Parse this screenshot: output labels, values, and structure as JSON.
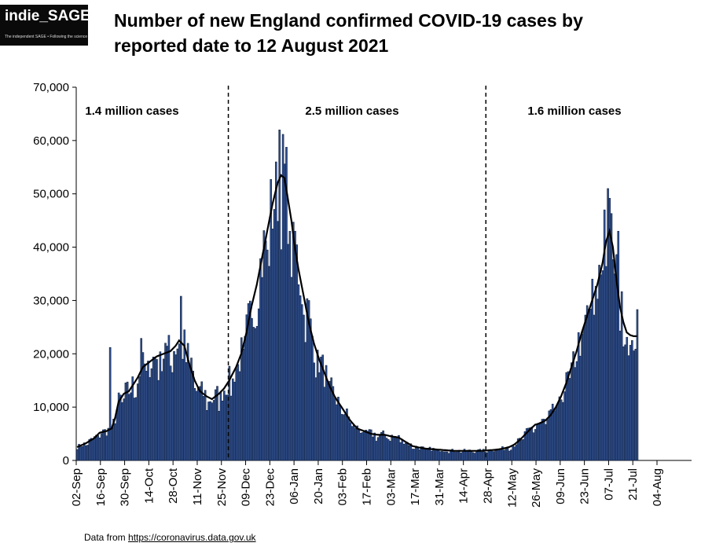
{
  "logo": {
    "name": "indie_SAGE",
    "tagline": "The independent SAGE • Following the science"
  },
  "title": "Number of new England confirmed COVID-19 cases by reported date to 12 August 2021",
  "source": {
    "prefix": "Data from ",
    "link": "https://coronavirus.data.gov.uk"
  },
  "colors": {
    "bar_fill": "#2f4f8f",
    "bar_edge": "#0d1a33",
    "trend_line": "#000000",
    "divider": "#000000"
  },
  "chart_data": {
    "type": "bar",
    "title": "Number of new England confirmed COVID-19 cases by reported date to 12 August 2021",
    "xlabel": "",
    "ylabel": "",
    "x_ticks": [
      "02-Sep",
      "16-Sep",
      "30-Sep",
      "14-Oct",
      "28-Oct",
      "11-Nov",
      "25-Nov",
      "09-Dec",
      "23-Dec",
      "06-Jan",
      "20-Jan",
      "03-Feb",
      "17-Feb",
      "03-Mar",
      "17-Mar",
      "31-Mar",
      "14-Apr",
      "28-Apr",
      "12-May",
      "26-May",
      "09-Jun",
      "23-Jun",
      "07-Jul",
      "21-Jul",
      "04-Aug"
    ],
    "y_ticks": [
      "0",
      "10,000",
      "20,000",
      "30,000",
      "40,000",
      "50,000",
      "60,000",
      "70,000"
    ],
    "ylim": [
      0,
      70000
    ],
    "x_range_days": [
      0,
      356
    ],
    "grid": false,
    "dividers_day": [
      88,
      237
    ],
    "annotations": [
      "1.4 million cases",
      "2.5 million cases",
      "1.6 million cases"
    ],
    "anchors": [
      [
        0,
        2500
      ],
      [
        5,
        3200
      ],
      [
        10,
        4200
      ],
      [
        13,
        5200
      ],
      [
        17,
        5500
      ],
      [
        20,
        6000
      ],
      [
        22,
        8000
      ],
      [
        24,
        11000
      ],
      [
        27,
        12500
      ],
      [
        30,
        13000
      ],
      [
        35,
        15500
      ],
      [
        38,
        17500
      ],
      [
        42,
        18500
      ],
      [
        46,
        19500
      ],
      [
        50,
        20000
      ],
      [
        54,
        20500
      ],
      [
        57,
        21500
      ],
      [
        59,
        22500
      ],
      [
        62,
        21500
      ],
      [
        65,
        18000
      ],
      [
        68,
        15000
      ],
      [
        71,
        13000
      ],
      [
        75,
        12000
      ],
      [
        78,
        11500
      ],
      [
        82,
        12500
      ],
      [
        85,
        13500
      ],
      [
        88,
        15000
      ],
      [
        92,
        17500
      ],
      [
        95,
        20000
      ],
      [
        98,
        24000
      ],
      [
        101,
        29000
      ],
      [
        104,
        33000
      ],
      [
        107,
        38000
      ],
      [
        110,
        43000
      ],
      [
        113,
        48000
      ],
      [
        116,
        52000
      ],
      [
        118,
        53500
      ],
      [
        120,
        53000
      ],
      [
        122,
        49000
      ],
      [
        124,
        45000
      ],
      [
        126,
        40000
      ],
      [
        128,
        36000
      ],
      [
        131,
        31000
      ],
      [
        134,
        26000
      ],
      [
        137,
        22000
      ],
      [
        140,
        19000
      ],
      [
        143,
        16500
      ],
      [
        146,
        14000
      ],
      [
        149,
        12000
      ],
      [
        152,
        10500
      ],
      [
        155,
        9000
      ],
      [
        158,
        7500
      ],
      [
        162,
        6000
      ],
      [
        166,
        5500
      ],
      [
        170,
        5000
      ],
      [
        174,
        4800
      ],
      [
        178,
        4800
      ],
      [
        182,
        4500
      ],
      [
        186,
        4300
      ],
      [
        190,
        3500
      ],
      [
        194,
        2700
      ],
      [
        198,
        2400
      ],
      [
        202,
        2200
      ],
      [
        206,
        2100
      ],
      [
        210,
        2000
      ],
      [
        214,
        1900
      ],
      [
        218,
        1800
      ],
      [
        222,
        1800
      ],
      [
        226,
        1800
      ],
      [
        230,
        1800
      ],
      [
        234,
        1800
      ],
      [
        238,
        1900
      ],
      [
        242,
        2000
      ],
      [
        246,
        2200
      ],
      [
        250,
        2500
      ],
      [
        253,
        3000
      ],
      [
        256,
        3800
      ],
      [
        259,
        4800
      ],
      [
        262,
        5800
      ],
      [
        265,
        6700
      ],
      [
        268,
        7000
      ],
      [
        271,
        7500
      ],
      [
        274,
        8500
      ],
      [
        277,
        10000
      ],
      [
        280,
        12000
      ],
      [
        283,
        14500
      ],
      [
        286,
        17500
      ],
      [
        289,
        20500
      ],
      [
        292,
        24000
      ],
      [
        295,
        27000
      ],
      [
        298,
        30000
      ],
      [
        301,
        33000
      ],
      [
        304,
        37000
      ],
      [
        306,
        41000
      ],
      [
        308,
        43000
      ],
      [
        310,
        40000
      ],
      [
        312,
        34000
      ],
      [
        314,
        29000
      ],
      [
        316,
        26000
      ],
      [
        318,
        24000
      ],
      [
        320,
        23500
      ],
      [
        322,
        23300
      ],
      [
        324,
        23300
      ]
    ],
    "spikes": {
      "19": 21200,
      "37": 22900,
      "51": 22000,
      "60": 30800,
      "62": 24500,
      "93": 18000,
      "117": 62000,
      "115": 56000,
      "123": 43000,
      "126": 43000,
      "134": 30000,
      "305": 47000,
      "307": 51000,
      "311": 35000,
      "313": 43000,
      "321": 22500,
      "324": 28300
    },
    "smoothing": "7-day rolling average line overlay"
  }
}
